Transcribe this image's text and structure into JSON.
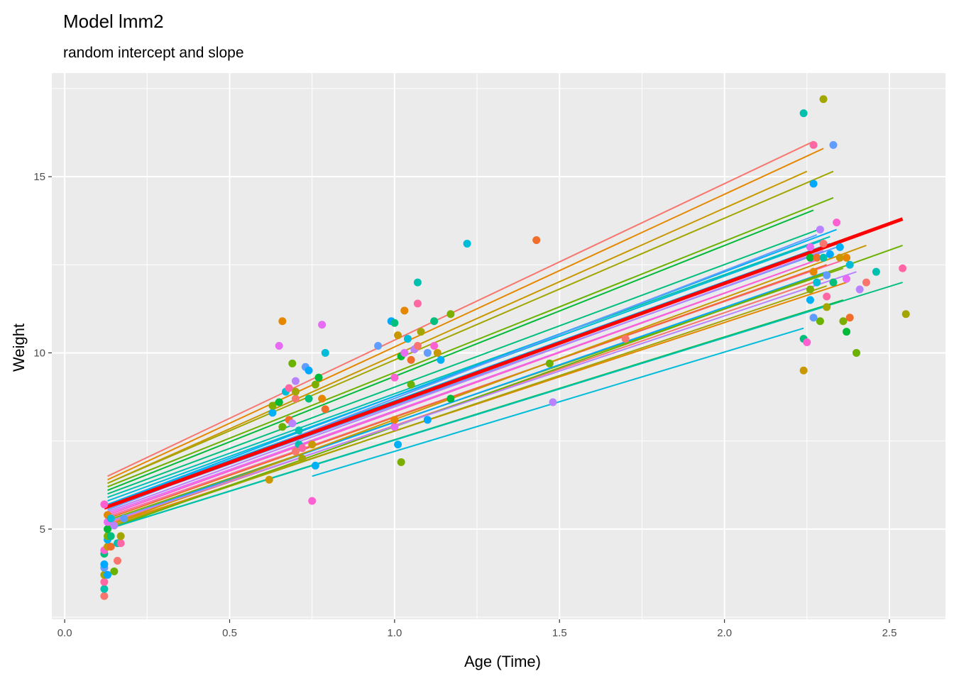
{
  "chart_data": {
    "type": "scatter",
    "title": "Model lmm2",
    "subtitle": "random intercept and slope",
    "xlabel": "Age (Time)",
    "ylabel": "Weight",
    "xlim": [
      -0.039,
      2.67
    ],
    "ylim": [
      2.44,
      17.94
    ],
    "xticks": [
      0.0,
      0.5,
      1.0,
      1.5,
      2.0,
      2.5
    ],
    "xtick_labels": [
      "0.0",
      "0.5",
      "1.0",
      "1.5",
      "2.0",
      "2.5"
    ],
    "yticks": [
      5,
      10,
      15
    ],
    "ytick_labels": [
      "5",
      "10",
      "15"
    ],
    "grid": true,
    "background": "#EBEBEB",
    "palette": [
      "#F8766D",
      "#E58700",
      "#C99800",
      "#A3A500",
      "#6BB100",
      "#00BA38",
      "#00BF7D",
      "#00C0AF",
      "#00BCD8",
      "#00B0F6",
      "#619CFF",
      "#B983FF",
      "#E76BF3",
      "#FD61D1",
      "#FF67A4",
      "#F06D2A",
      "#7CAE00",
      "#00A9FF"
    ],
    "fixed_effect": {
      "color": "#FF0000",
      "x": [
        0.12,
        2.54
      ],
      "y": [
        5.6,
        13.8
      ]
    },
    "group_lines": [
      [
        0.13,
        6.5,
        2.27,
        16.0
      ],
      [
        0.13,
        6.4,
        2.3,
        15.8
      ],
      [
        0.13,
        6.3,
        2.25,
        15.15
      ],
      [
        0.13,
        6.3,
        2.33,
        15.15
      ],
      [
        0.13,
        6.2,
        2.33,
        14.4
      ],
      [
        0.13,
        6.1,
        2.27,
        14.05
      ],
      [
        0.13,
        6.0,
        2.3,
        13.55
      ],
      [
        0.13,
        5.9,
        2.32,
        13.3
      ],
      [
        0.13,
        5.8,
        2.3,
        13.2
      ],
      [
        0.13,
        5.7,
        2.32,
        13.1
      ],
      [
        0.13,
        5.6,
        2.34,
        13.0
      ],
      [
        0.13,
        5.5,
        2.3,
        12.9
      ],
      [
        0.13,
        5.45,
        2.33,
        12.8
      ],
      [
        0.13,
        5.4,
        2.3,
        12.7
      ],
      [
        0.13,
        5.35,
        2.35,
        12.6
      ],
      [
        0.13,
        5.3,
        2.31,
        12.5
      ],
      [
        0.13,
        5.25,
        2.36,
        12.4
      ],
      [
        0.13,
        5.2,
        2.31,
        12.3
      ],
      [
        0.13,
        5.15,
        2.3,
        12.1
      ],
      [
        0.13,
        5.1,
        2.37,
        12.0
      ],
      [
        0.13,
        5.1,
        2.43,
        13.05
      ],
      [
        0.13,
        5.05,
        2.31,
        11.9
      ],
      [
        0.13,
        5.0,
        2.54,
        13.05
      ],
      [
        0.13,
        5.0,
        2.36,
        11.5
      ],
      [
        0.13,
        5.0,
        2.54,
        12.0
      ],
      [
        0.13,
        5.0,
        2.3,
        11.3
      ],
      [
        0.75,
        6.5,
        2.24,
        10.7
      ],
      [
        0.13,
        5.7,
        2.34,
        13.5
      ],
      [
        0.13,
        5.55,
        2.28,
        13.35
      ],
      [
        0.13,
        5.2,
        2.4,
        12.3
      ]
    ],
    "points": [
      [
        0.12,
        3.1
      ],
      [
        0.12,
        3.3
      ],
      [
        0.12,
        3.5
      ],
      [
        0.12,
        3.7
      ],
      [
        0.12,
        3.9
      ],
      [
        0.12,
        4.0
      ],
      [
        0.12,
        4.3
      ],
      [
        0.12,
        4.4
      ],
      [
        0.13,
        4.5
      ],
      [
        0.13,
        4.7
      ],
      [
        0.13,
        4.8
      ],
      [
        0.13,
        5.0
      ],
      [
        0.13,
        5.2
      ],
      [
        0.13,
        5.4
      ],
      [
        0.14,
        5.3
      ],
      [
        0.14,
        4.5
      ],
      [
        0.15,
        3.8
      ],
      [
        0.15,
        5.1
      ],
      [
        0.16,
        4.1
      ],
      [
        0.16,
        4.6
      ],
      [
        0.17,
        4.6
      ],
      [
        0.17,
        4.8
      ],
      [
        0.18,
        5.3
      ],
      [
        0.13,
        3.7
      ],
      [
        0.14,
        4.8
      ],
      [
        0.12,
        5.7
      ],
      [
        0.62,
        6.4
      ],
      [
        0.63,
        8.3
      ],
      [
        0.63,
        8.5
      ],
      [
        0.65,
        8.6
      ],
      [
        0.65,
        10.2
      ],
      [
        0.66,
        10.9
      ],
      [
        0.67,
        8.9
      ],
      [
        0.68,
        8.1
      ],
      [
        0.69,
        9.7
      ],
      [
        0.7,
        9.2
      ],
      [
        0.7,
        8.7
      ],
      [
        0.71,
        7.4
      ],
      [
        0.72,
        7.3
      ],
      [
        0.72,
        7.0
      ],
      [
        0.73,
        9.6
      ],
      [
        0.74,
        9.5
      ],
      [
        0.74,
        8.7
      ],
      [
        0.75,
        5.8
      ],
      [
        0.75,
        7.4
      ],
      [
        0.76,
        6.8
      ],
      [
        0.76,
        9.1
      ],
      [
        0.77,
        9.3
      ],
      [
        0.78,
        10.8
      ],
      [
        0.78,
        8.7
      ],
      [
        0.79,
        10.0
      ],
      [
        0.79,
        8.4
      ],
      [
        0.66,
        7.9
      ],
      [
        0.69,
        8.0
      ],
      [
        0.7,
        7.2
      ],
      [
        0.71,
        7.8
      ],
      [
        0.68,
        9.0
      ],
      [
        0.7,
        8.9
      ],
      [
        0.95,
        10.2
      ],
      [
        0.99,
        10.9
      ],
      [
        1.0,
        10.85
      ],
      [
        1.0,
        9.3
      ],
      [
        1.01,
        10.5
      ],
      [
        1.01,
        7.4
      ],
      [
        1.02,
        6.9
      ],
      [
        1.02,
        9.9
      ],
      [
        1.03,
        10.0
      ],
      [
        1.03,
        11.2
      ],
      [
        1.04,
        10.4
      ],
      [
        1.05,
        9.8
      ],
      [
        1.05,
        9.1
      ],
      [
        1.06,
        10.1
      ],
      [
        1.07,
        10.2
      ],
      [
        1.07,
        12.0
      ],
      [
        1.07,
        11.4
      ],
      [
        1.08,
        10.6
      ],
      [
        1.1,
        10.0
      ],
      [
        1.1,
        8.1
      ],
      [
        1.12,
        10.9
      ],
      [
        1.12,
        10.2
      ],
      [
        1.13,
        10.0
      ],
      [
        1.14,
        9.8
      ],
      [
        1.17,
        11.1
      ],
      [
        1.17,
        8.7
      ],
      [
        1.0,
        7.9
      ],
      [
        1.0,
        8.1
      ],
      [
        1.22,
        13.1
      ],
      [
        1.43,
        13.2
      ],
      [
        1.47,
        9.7
      ],
      [
        1.48,
        8.6
      ],
      [
        1.7,
        10.4
      ],
      [
        2.24,
        16.8
      ],
      [
        2.27,
        15.9
      ],
      [
        2.3,
        17.2
      ],
      [
        2.33,
        15.9
      ],
      [
        2.27,
        14.8
      ],
      [
        2.24,
        10.4
      ],
      [
        2.25,
        10.3
      ],
      [
        2.24,
        9.5
      ],
      [
        2.26,
        11.5
      ],
      [
        2.26,
        11.8
      ],
      [
        2.26,
        12.7
      ],
      [
        2.26,
        13.0
      ],
      [
        2.27,
        12.3
      ],
      [
        2.28,
        12.0
      ],
      [
        2.28,
        12.7
      ],
      [
        2.29,
        10.9
      ],
      [
        2.29,
        13.5
      ],
      [
        2.3,
        13.1
      ],
      [
        2.3,
        12.7
      ],
      [
        2.31,
        11.6
      ],
      [
        2.31,
        11.3
      ],
      [
        2.31,
        12.2
      ],
      [
        2.32,
        12.8
      ],
      [
        2.33,
        12.0
      ],
      [
        2.34,
        13.7
      ],
      [
        2.35,
        12.7
      ],
      [
        2.35,
        13.0
      ],
      [
        2.36,
        10.9
      ],
      [
        2.37,
        10.6
      ],
      [
        2.37,
        12.1
      ],
      [
        2.37,
        12.7
      ],
      [
        2.38,
        12.5
      ],
      [
        2.38,
        11.0
      ],
      [
        2.4,
        10.0
      ],
      [
        2.41,
        11.8
      ],
      [
        2.43,
        12.0
      ],
      [
        2.46,
        12.3
      ],
      [
        2.54,
        12.4
      ],
      [
        2.55,
        11.1
      ],
      [
        2.27,
        11.0
      ]
    ]
  }
}
